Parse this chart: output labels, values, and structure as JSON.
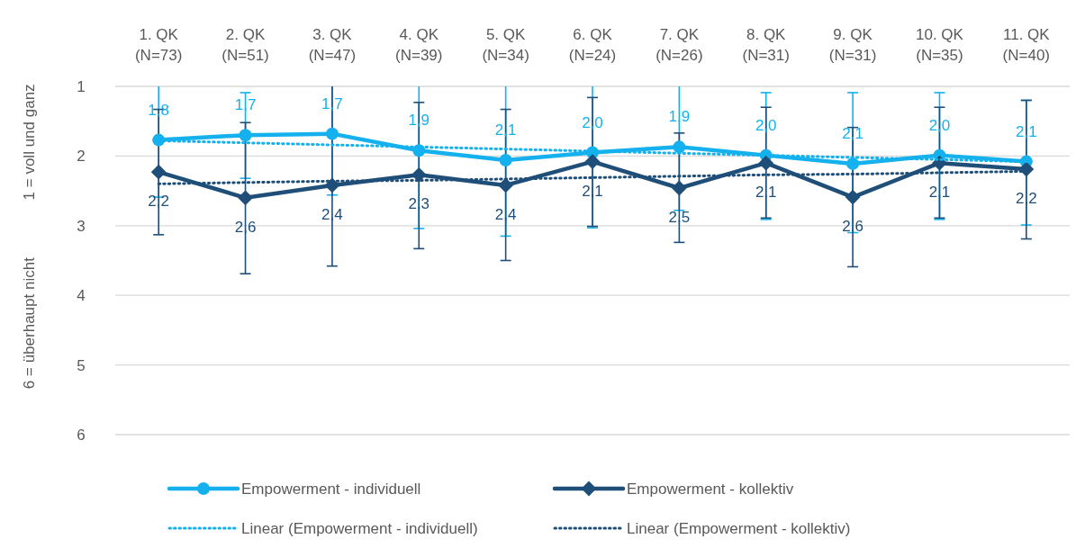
{
  "chart_data": {
    "type": "line",
    "categories": [
      "1. QK\n(N=73)",
      "2. QK\n(N=51)",
      "3. QK\n(N=47)",
      "4. QK\n(N=39)",
      "5. QK\n(N=34)",
      "6. QK\n(N=24)",
      "7. QK\n(N=26)",
      "8. QK\n(N=31)",
      "9. QK\n(N=31)",
      "10. QK\n(N=35)",
      "11. QK\n(N=40)"
    ],
    "ylabel": "1 = voll und ganz",
    "annotations": [
      "6 = überhaupt nicht"
    ],
    "ylim": [
      6,
      1
    ],
    "yticks": [
      1,
      2,
      3,
      4,
      5,
      6
    ],
    "grid": "y",
    "legend": "bottom",
    "series": [
      {
        "name": "Empowerment - individuell",
        "color": "#14b1ee",
        "marker": "circle",
        "line_style": "solid",
        "values": [
          1.77,
          1.7,
          1.68,
          1.92,
          2.06,
          1.95,
          1.87,
          1.99,
          2.11,
          1.99,
          2.08
        ],
        "value_labels": [
          "1,8",
          "1,7",
          "1,7",
          "1,9",
          "2,1",
          "2,0",
          "1,9",
          "2,0",
          "2,1",
          "2,0",
          "2,1"
        ],
        "errors": [
          [
            1,
            2.59
          ],
          [
            1.09,
            2.32
          ],
          [
            1,
            2.56
          ],
          [
            1,
            3.04
          ],
          [
            1,
            3.15
          ],
          [
            1,
            3.03
          ],
          [
            1,
            2.78
          ],
          [
            1.09,
            2.91
          ],
          [
            1.09,
            3.1
          ],
          [
            1.09,
            2.91
          ],
          [
            1.2,
            2.99
          ]
        ]
      },
      {
        "name": "Empowerment - kollektiv",
        "color": "#1f4e79",
        "marker": "diamond",
        "line_style": "solid",
        "values": [
          2.23,
          2.6,
          2.42,
          2.27,
          2.42,
          2.08,
          2.46,
          2.1,
          2.59,
          2.1,
          2.19
        ],
        "value_labels": [
          "2,2",
          "2,6",
          "2,4",
          "2,3",
          "2,4",
          "2,1",
          "2,5",
          "2,1",
          "2,6",
          "2,1",
          "2,2"
        ],
        "errors": [
          [
            1.33,
            3.13
          ],
          [
            1.52,
            3.69
          ],
          [
            1,
            3.58
          ],
          [
            1.23,
            3.33
          ],
          [
            1.33,
            3.5
          ],
          [
            1.16,
            3.01
          ],
          [
            1.67,
            3.24
          ],
          [
            1.3,
            2.89
          ],
          [
            1.59,
            3.59
          ],
          [
            1.3,
            2.89
          ],
          [
            1.2,
            3.19
          ]
        ]
      },
      {
        "name": "Linear (Empowerment - individuell)",
        "color": "#14b1ee",
        "marker": "none",
        "line_style": "dotted",
        "values": [
          1.78,
          1.81,
          1.84,
          1.87,
          1.9,
          1.93,
          1.96,
          1.99,
          2.02,
          2.05,
          2.08
        ]
      },
      {
        "name": "Linear (Empowerment - kollektiv)",
        "color": "#1f4e79",
        "marker": "none",
        "line_style": "dotted",
        "values": [
          2.4,
          2.38,
          2.36,
          2.35,
          2.33,
          2.31,
          2.29,
          2.27,
          2.26,
          2.24,
          2.22
        ]
      }
    ]
  }
}
